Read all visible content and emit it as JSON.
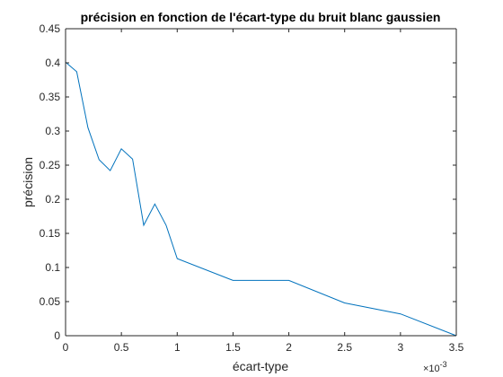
{
  "chart_data": {
    "type": "line",
    "title": "précision en fonction de l'écart-type du bruit blanc gaussien",
    "xlabel": "écart-type",
    "ylabel": "précision",
    "x_exponent_label": "×10",
    "x_exponent_power": "-3",
    "xlim": [
      0,
      3.5
    ],
    "ylim": [
      0,
      0.45
    ],
    "x_scale_note": "x values in units of 1e-3",
    "xticks": [
      0,
      0.5,
      1,
      1.5,
      2,
      2.5,
      3,
      3.5
    ],
    "xtick_labels": [
      "0",
      "0.5",
      "1",
      "1.5",
      "2",
      "2.5",
      "3",
      "3.5"
    ],
    "yticks": [
      0,
      0.05,
      0.1,
      0.15,
      0.2,
      0.25,
      0.3,
      0.35,
      0.4,
      0.45
    ],
    "ytick_labels": [
      "0",
      "0.05",
      "0.1",
      "0.15",
      "0.2",
      "0.25",
      "0.3",
      "0.35",
      "0.4",
      "0.45"
    ],
    "grid": false,
    "series": [
      {
        "color": "#0072bd",
        "x": [
          0,
          0.1,
          0.2,
          0.3,
          0.4,
          0.5,
          0.6,
          0.7,
          0.8,
          0.9,
          1.0,
          1.5,
          2.0,
          2.5,
          3.0,
          3.5
        ],
        "y": [
          0.401,
          0.387,
          0.305,
          0.258,
          0.242,
          0.274,
          0.259,
          0.162,
          0.193,
          0.162,
          0.113,
          0.081,
          0.081,
          0.048,
          0.032,
          0.0
        ]
      }
    ]
  }
}
